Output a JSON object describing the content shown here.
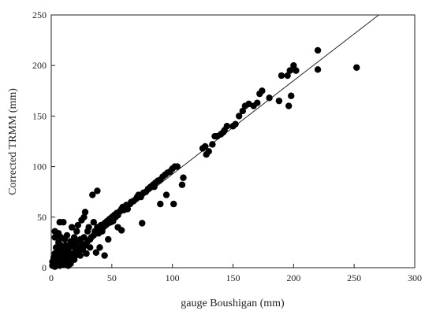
{
  "chart_data": {
    "type": "scatter",
    "xlabel": "gauge Boushigan (mm)",
    "ylabel": "Corrected TRMM (mm)",
    "xlim": [
      0,
      300
    ],
    "ylim": [
      0,
      250
    ],
    "x_ticks": [
      0,
      50,
      100,
      150,
      200,
      250,
      300
    ],
    "y_ticks": [
      0,
      50,
      100,
      150,
      200,
      250
    ],
    "x_tick_labels": [
      "0",
      "50",
      "100",
      "150",
      "200",
      "250",
      "300"
    ],
    "y_tick_labels": [
      "0",
      "50",
      "100",
      "150",
      "200",
      "250"
    ],
    "grid": false,
    "marker_color": "#000000",
    "trend_line": {
      "slope": 0.925,
      "intercept": 0
    },
    "series": [
      {
        "points": [
          [
            1,
            2
          ],
          [
            1,
            6
          ],
          [
            2,
            4
          ],
          [
            2,
            10
          ],
          [
            3,
            1
          ],
          [
            3,
            14
          ],
          [
            3,
            30
          ],
          [
            3,
            36
          ],
          [
            4,
            8
          ],
          [
            4,
            20
          ],
          [
            5,
            3
          ],
          [
            5,
            12
          ],
          [
            5,
            18
          ],
          [
            6,
            5
          ],
          [
            6,
            25
          ],
          [
            6,
            34
          ],
          [
            7,
            2
          ],
          [
            7,
            8
          ],
          [
            7,
            45
          ],
          [
            8,
            15
          ],
          [
            8,
            22
          ],
          [
            8,
            30
          ],
          [
            9,
            5
          ],
          [
            9,
            12
          ],
          [
            10,
            3
          ],
          [
            10,
            10
          ],
          [
            10,
            18
          ],
          [
            10,
            45
          ],
          [
            11,
            7
          ],
          [
            11,
            28
          ],
          [
            12,
            4
          ],
          [
            12,
            14
          ],
          [
            12,
            22
          ],
          [
            13,
            9
          ],
          [
            13,
            32
          ],
          [
            14,
            2
          ],
          [
            14,
            16
          ],
          [
            15,
            6
          ],
          [
            15,
            12
          ],
          [
            15,
            20
          ],
          [
            16,
            26
          ],
          [
            16,
            4
          ],
          [
            17,
            10
          ],
          [
            17,
            40
          ],
          [
            18,
            14
          ],
          [
            18,
            22
          ],
          [
            19,
            8
          ],
          [
            19,
            30
          ],
          [
            20,
            12
          ],
          [
            20,
            18
          ],
          [
            20,
            25
          ],
          [
            21,
            36
          ],
          [
            22,
            16
          ],
          [
            22,
            42
          ],
          [
            23,
            20
          ],
          [
            24,
            12
          ],
          [
            24,
            28
          ],
          [
            25,
            24
          ],
          [
            25,
            47
          ],
          [
            26,
            18
          ],
          [
            27,
            30
          ],
          [
            27,
            50
          ],
          [
            28,
            22
          ],
          [
            28,
            55
          ],
          [
            29,
            14
          ],
          [
            30,
            26
          ],
          [
            30,
            36
          ],
          [
            31,
            40
          ],
          [
            32,
            28
          ],
          [
            32,
            20
          ],
          [
            33,
            30
          ],
          [
            34,
            72
          ],
          [
            35,
            32
          ],
          [
            35,
            45
          ],
          [
            36,
            36
          ],
          [
            37,
            15
          ],
          [
            38,
            40
          ],
          [
            38,
            76
          ],
          [
            39,
            34
          ],
          [
            40,
            20
          ],
          [
            40,
            38
          ],
          [
            41,
            42
          ],
          [
            42,
            36
          ],
          [
            43,
            40
          ],
          [
            44,
            44
          ],
          [
            44,
            12
          ],
          [
            45,
            42
          ],
          [
            46,
            46
          ],
          [
            47,
            28
          ],
          [
            47,
            44
          ],
          [
            48,
            48
          ],
          [
            49,
            45
          ],
          [
            50,
            50
          ],
          [
            51,
            46
          ],
          [
            51,
            48
          ],
          [
            52,
            52
          ],
          [
            53,
            50
          ],
          [
            54,
            54
          ],
          [
            55,
            52
          ],
          [
            55,
            40
          ],
          [
            56,
            55
          ],
          [
            57,
            56
          ],
          [
            58,
            58
          ],
          [
            58,
            37
          ],
          [
            59,
            60
          ],
          [
            60,
            57
          ],
          [
            61,
            60
          ],
          [
            62,
            62
          ],
          [
            63,
            58
          ],
          [
            65,
            63
          ],
          [
            66,
            65
          ],
          [
            68,
            66
          ],
          [
            70,
            68
          ],
          [
            71,
            70
          ],
          [
            72,
            72
          ],
          [
            74,
            70
          ],
          [
            75,
            44
          ],
          [
            76,
            74
          ],
          [
            78,
            75
          ],
          [
            80,
            78
          ],
          [
            82,
            80
          ],
          [
            84,
            82
          ],
          [
            85,
            80
          ],
          [
            86,
            84
          ],
          [
            88,
            86
          ],
          [
            89,
            86
          ],
          [
            90,
            87
          ],
          [
            90,
            63
          ],
          [
            92,
            90
          ],
          [
            94,
            92
          ],
          [
            95,
            72
          ],
          [
            96,
            94
          ],
          [
            98,
            95
          ],
          [
            100,
            98
          ],
          [
            101,
            63
          ],
          [
            102,
            100
          ],
          [
            104,
            100
          ],
          [
            108,
            82
          ],
          [
            109,
            89
          ],
          [
            125,
            118
          ],
          [
            127,
            120
          ],
          [
            128,
            112
          ],
          [
            130,
            115
          ],
          [
            133,
            122
          ],
          [
            135,
            130
          ],
          [
            137,
            130
          ],
          [
            140,
            132
          ],
          [
            142,
            134
          ],
          [
            143,
            136
          ],
          [
            145,
            140
          ],
          [
            150,
            140
          ],
          [
            152,
            142
          ],
          [
            155,
            150
          ],
          [
            158,
            155
          ],
          [
            160,
            160
          ],
          [
            163,
            162
          ],
          [
            167,
            160
          ],
          [
            170,
            163
          ],
          [
            172,
            172
          ],
          [
            174,
            175
          ],
          [
            180,
            168
          ],
          [
            188,
            165
          ],
          [
            190,
            190
          ],
          [
            195,
            190
          ],
          [
            196,
            160
          ],
          [
            197,
            195
          ],
          [
            198,
            170
          ],
          [
            200,
            200
          ],
          [
            202,
            195
          ],
          [
            220,
            215
          ],
          [
            220,
            196
          ],
          [
            252,
            198
          ]
        ]
      }
    ]
  }
}
